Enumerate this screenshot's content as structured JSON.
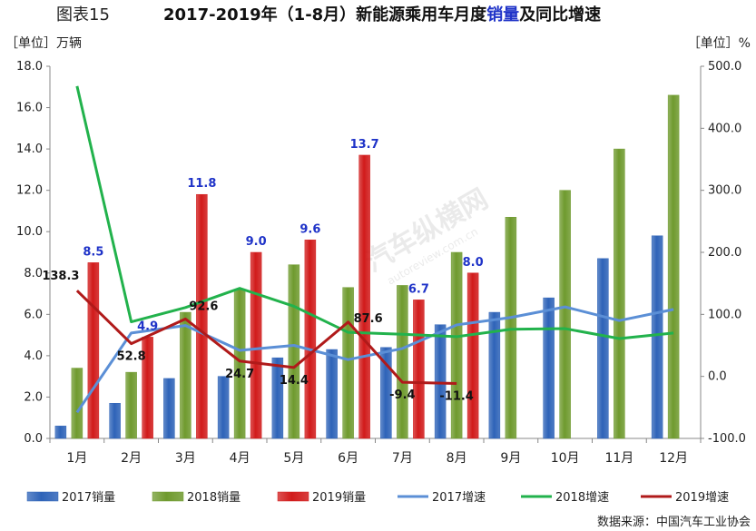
{
  "header": {
    "figure_prefix": "图表15",
    "title_main": "2017-2019年（1-8月）新能源乘用车月度",
    "title_accent": "销量",
    "title_suffix": "及同比增速"
  },
  "units": {
    "left": "［单位］万辆",
    "right": "［单位］%"
  },
  "source": "数据来源：中国汽车工业协会",
  "colors": {
    "bar2017": "#2e63b8",
    "bar2018": "#6f9a2e",
    "bar2019": "#d11a1a",
    "line2017": "#5b8fd6",
    "line2018": "#22b24c",
    "line2019": "#b01a1a",
    "bar_label": "#1f33c8"
  },
  "chart_data": {
    "type": "bar",
    "categories": [
      "1月",
      "2月",
      "3月",
      "4月",
      "5月",
      "6月",
      "7月",
      "8月",
      "9月",
      "10月",
      "11月",
      "12月"
    ],
    "y_left": {
      "min": 0,
      "max": 18,
      "step": 2,
      "ticks": [
        "0.0",
        "2.0",
        "4.0",
        "6.0",
        "8.0",
        "10.0",
        "12.0",
        "14.0",
        "16.0",
        "18.0"
      ]
    },
    "y_right": {
      "min": -100,
      "max": 500,
      "step": 100,
      "ticks": [
        "-100.0",
        "0.0",
        "100.0",
        "200.0",
        "300.0",
        "400.0",
        "500.0"
      ]
    },
    "bar_series": [
      {
        "name": "2017销量",
        "values": [
          0.6,
          1.7,
          2.9,
          3.0,
          3.9,
          4.3,
          4.4,
          5.5,
          6.1,
          6.8,
          8.7,
          9.8
        ]
      },
      {
        "name": "2018销量",
        "values": [
          3.4,
          3.2,
          6.1,
          7.2,
          8.4,
          7.3,
          7.4,
          9.0,
          10.7,
          12.0,
          14.0,
          16.6
        ]
      },
      {
        "name": "2019销量",
        "values": [
          8.5,
          4.9,
          11.8,
          9.0,
          9.6,
          13.7,
          6.7,
          8.0
        ],
        "labels": [
          "8.5",
          "4.9",
          "11.8",
          "9.0",
          "9.6",
          "13.7",
          "6.7",
          "8.0"
        ]
      }
    ],
    "line_series": [
      {
        "name": "2017增速",
        "values": [
          -58,
          70,
          82,
          42,
          50,
          27,
          45,
          83,
          95,
          112,
          90,
          108
        ]
      },
      {
        "name": "2018增速",
        "values": [
          468,
          88,
          111,
          142,
          113,
          71,
          68,
          64,
          76,
          77,
          61,
          70
        ]
      },
      {
        "name": "2019增速",
        "values": [
          138.3,
          52.8,
          92.6,
          24.7,
          14.4,
          87.6,
          -9.4,
          -11.4
        ],
        "labels": [
          "138.3",
          "52.8",
          "92.6",
          "24.7",
          "14.4",
          "87.6",
          "-9.4",
          "-11.4"
        ]
      }
    ],
    "legend": {
      "position": "bottom"
    },
    "grid": false
  }
}
